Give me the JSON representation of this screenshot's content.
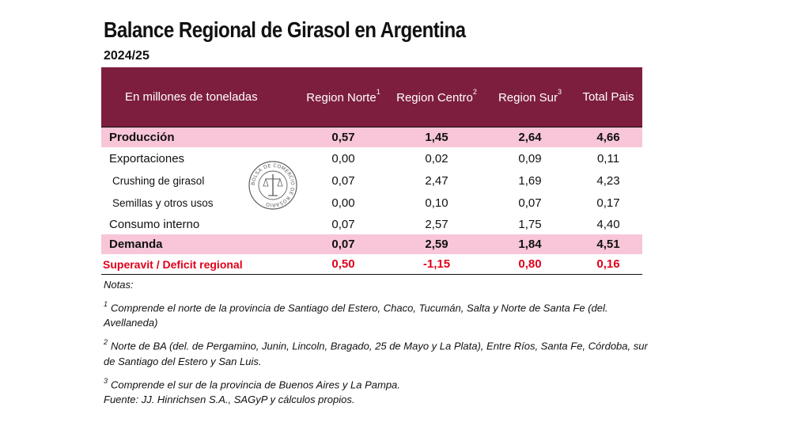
{
  "title": "Balance Regional de Girasol en Argentina",
  "subtitle": "2024/25",
  "table": {
    "header": {
      "label": "En millones de toneladas",
      "cols": [
        {
          "name": "Region Norte",
          "sup": "1"
        },
        {
          "name": "Region Centro",
          "sup": "2"
        },
        {
          "name": "Region Sur",
          "sup": "3"
        },
        {
          "name": "Total Pais",
          "sup": ""
        }
      ]
    },
    "rows": [
      {
        "label": "Producción",
        "values": [
          "0,57",
          "1,45",
          "2,64",
          "4,66"
        ]
      },
      {
        "label": "Exportaciones",
        "values": [
          "0,00",
          "0,02",
          "0,09",
          "0,11"
        ]
      },
      {
        "label": "Crushing de girasol",
        "values": [
          "0,07",
          "2,47",
          "1,69",
          "4,23"
        ]
      },
      {
        "label": "Semillas y otros usos",
        "values": [
          "0,00",
          "0,10",
          "0,07",
          "0,17"
        ]
      },
      {
        "label": "Consumo interno",
        "values": [
          "0,07",
          "2,57",
          "1,75",
          "4,40"
        ]
      },
      {
        "label": "Demanda",
        "values": [
          "0,07",
          "2,59",
          "1,84",
          "4,51"
        ]
      },
      {
        "label": "Superavit / Deficit regional",
        "values": [
          "0,50",
          "-1,15",
          "0,80",
          "0,16"
        ]
      }
    ]
  },
  "seal": {
    "text": "BOLSA DE COMERCIO DE ROSARIO"
  },
  "notes": {
    "heading": "Notas:",
    "n1_sup": "1",
    "n1": "Comprende el norte de la provincia de Santiago del Estero, Chaco, Tucumán, Salta y Norte de Santa Fe (del. Avellaneda)",
    "n2_sup": "2",
    "n2": "Norte de BA (del. de Pergamino, Junin, Lincoln, Bragado, 25 de Mayo y La Plata), Entre Ríos, Santa Fe, Córdoba, sur de Santiago del Estero y San Luis.",
    "n3_sup": "3",
    "n3": "Comprende el sur de la provincia de Buenos Aires y La Pampa.",
    "source": "Fuente: JJ. Hinrichsen S.A., SAGyP y cálculos propios."
  },
  "colors": {
    "header_bg": "#7e1e3f",
    "highlight_bg": "#f8c6d8",
    "balance_text": "#e0001a"
  }
}
